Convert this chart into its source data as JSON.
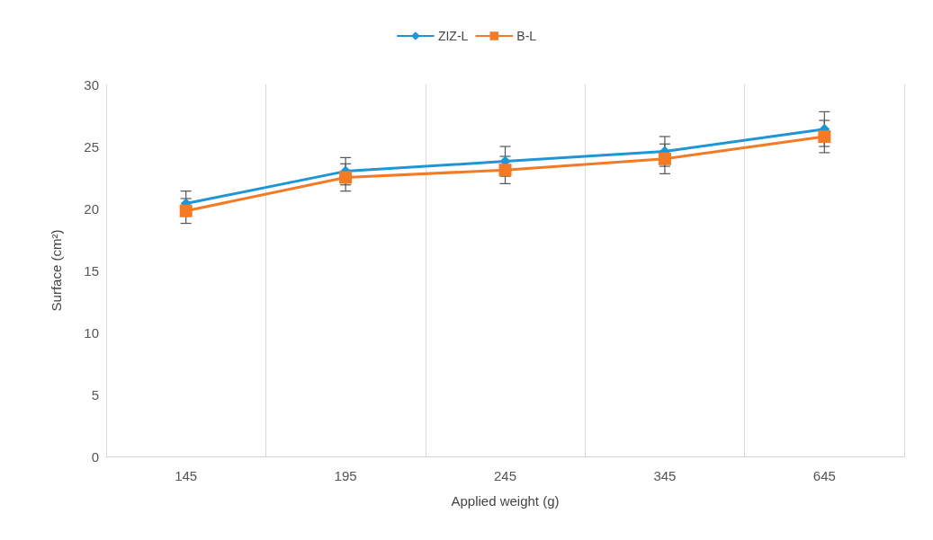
{
  "chart_data": {
    "type": "line",
    "xlabel": "Applied weight (g)",
    "ylabel": "Surface (cm²)",
    "categories": [
      "145",
      "195",
      "245",
      "345",
      "645"
    ],
    "series": [
      {
        "name": "ZIZ-L",
        "color": "#1f96d4",
        "marker": "diamond",
        "values": [
          20.4,
          23.0,
          23.8,
          24.6,
          26.4
        ],
        "errors": [
          1.0,
          1.1,
          1.2,
          1.2,
          1.4
        ]
      },
      {
        "name": "B-L",
        "color": "#f47a24",
        "marker": "square",
        "values": [
          19.8,
          22.5,
          23.1,
          24.0,
          25.8
        ],
        "errors": [
          1.0,
          1.1,
          1.1,
          1.2,
          1.3
        ]
      }
    ],
    "ylim": [
      0,
      30
    ],
    "yticks": [
      0,
      5,
      10,
      15,
      20,
      25,
      30
    ],
    "grid": "x",
    "legend": "top",
    "line_style": "solid"
  }
}
